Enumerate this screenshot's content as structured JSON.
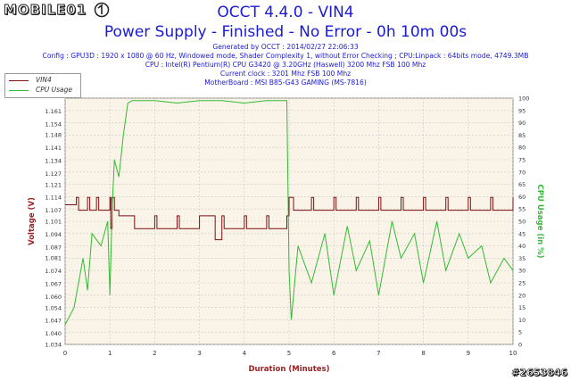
{
  "logo": "MOBILE01",
  "title": "OCCT 4.4.0 - VIN4",
  "subtitle": "Power Supply - Finished - No Error - 0h 10m 00s",
  "info": [
    "Generated by OCCT : 2014/02/27 22:06:33",
    "Config : GPU3D : 1920 x 1080 @ 60 Hz, Windowed mode, Shader Complexity 1, without Error Checking ; CPU:Linpack : 64bits mode, 4749.3MB",
    "CPU : Intel(R) Pentium(R) CPU G3420 @ 3.20GHz (Haswell) 3200 Mhz FSB 100 Mhz",
    "Current clock : 3201 Mhz FSB 100 Mhz",
    "MotherBoard : MSI B85-G43 GAMING (MS-7816)"
  ],
  "watermark": "#2653846",
  "colors": {
    "vin4": "#7a1010",
    "cpu": "#33bb33",
    "plot_bg": "#faf3e8",
    "text": "#1a1ad6",
    "axis_label": "#9a2222"
  },
  "chart_data": {
    "type": "line",
    "xlabel": "Duration (Minutes)",
    "ylabel_left": "Voltage (V)",
    "ylabel_right": "CPU Usage (in %)",
    "xlim": [
      0,
      10
    ],
    "xticks": [
      0,
      1,
      2,
      3,
      4,
      5,
      6,
      7,
      8,
      9,
      10
    ],
    "ylim_left": [
      1.034,
      1.168
    ],
    "yticks_left": [
      1.034,
      1.04,
      1.047,
      1.054,
      1.06,
      1.067,
      1.074,
      1.081,
      1.087,
      1.094,
      1.101,
      1.107,
      1.114,
      1.121,
      1.127,
      1.134,
      1.141,
      1.148,
      1.154,
      1.161
    ],
    "ylim_right": [
      0,
      100
    ],
    "yticks_right": [
      0,
      5,
      10,
      15,
      20,
      25,
      30,
      35,
      40,
      45,
      50,
      55,
      60,
      65,
      70,
      75,
      80,
      85,
      90,
      95,
      100
    ],
    "grid": true,
    "legend": "top-left",
    "series": [
      {
        "name": "VIN4",
        "axis": "left",
        "x": [
          0,
          0.25,
          0.3,
          0.5,
          0.55,
          0.7,
          0.75,
          1.0,
          1.02,
          1.05,
          1.1,
          1.2,
          1.5,
          1.55,
          2.0,
          2.05,
          2.5,
          2.55,
          3.0,
          3.3,
          3.35,
          3.5,
          3.55,
          4.0,
          4.05,
          4.5,
          4.55,
          4.95,
          5.0,
          5.1,
          5.5,
          5.55,
          6.0,
          6.05,
          6.5,
          6.55,
          7.0,
          7.05,
          7.5,
          7.55,
          8.0,
          8.05,
          8.5,
          8.55,
          9.0,
          9.05,
          9.5,
          9.55,
          10.0
        ],
        "y": [
          1.11,
          1.114,
          1.107,
          1.114,
          1.107,
          1.114,
          1.107,
          1.114,
          1.097,
          1.114,
          1.107,
          1.104,
          1.104,
          1.097,
          1.104,
          1.097,
          1.104,
          1.097,
          1.104,
          1.104,
          1.091,
          1.104,
          1.097,
          1.104,
          1.097,
          1.104,
          1.097,
          1.104,
          1.114,
          1.107,
          1.114,
          1.107,
          1.114,
          1.107,
          1.114,
          1.107,
          1.114,
          1.107,
          1.114,
          1.107,
          1.114,
          1.107,
          1.114,
          1.107,
          1.114,
          1.107,
          1.114,
          1.107,
          1.114
        ]
      },
      {
        "name": "CPU Usage",
        "axis": "right",
        "x": [
          0,
          0.2,
          0.4,
          0.5,
          0.6,
          0.8,
          0.95,
          1.0,
          1.05,
          1.1,
          1.2,
          1.3,
          1.4,
          1.5,
          2.0,
          2.5,
          3.0,
          3.5,
          4.0,
          4.5,
          4.95,
          5.0,
          5.05,
          5.2,
          5.5,
          5.8,
          6.0,
          6.3,
          6.5,
          6.8,
          7.0,
          7.3,
          7.5,
          7.8,
          8.0,
          8.3,
          8.5,
          8.8,
          9.0,
          9.3,
          9.5,
          9.8,
          10.0
        ],
        "y": [
          8,
          15,
          35,
          22,
          45,
          40,
          50,
          20,
          55,
          75,
          68,
          85,
          98,
          99,
          99,
          98,
          99,
          99,
          98,
          99,
          99,
          30,
          10,
          40,
          25,
          45,
          20,
          48,
          30,
          42,
          20,
          50,
          35,
          45,
          25,
          50,
          30,
          45,
          35,
          40,
          25,
          35,
          30
        ]
      }
    ]
  }
}
